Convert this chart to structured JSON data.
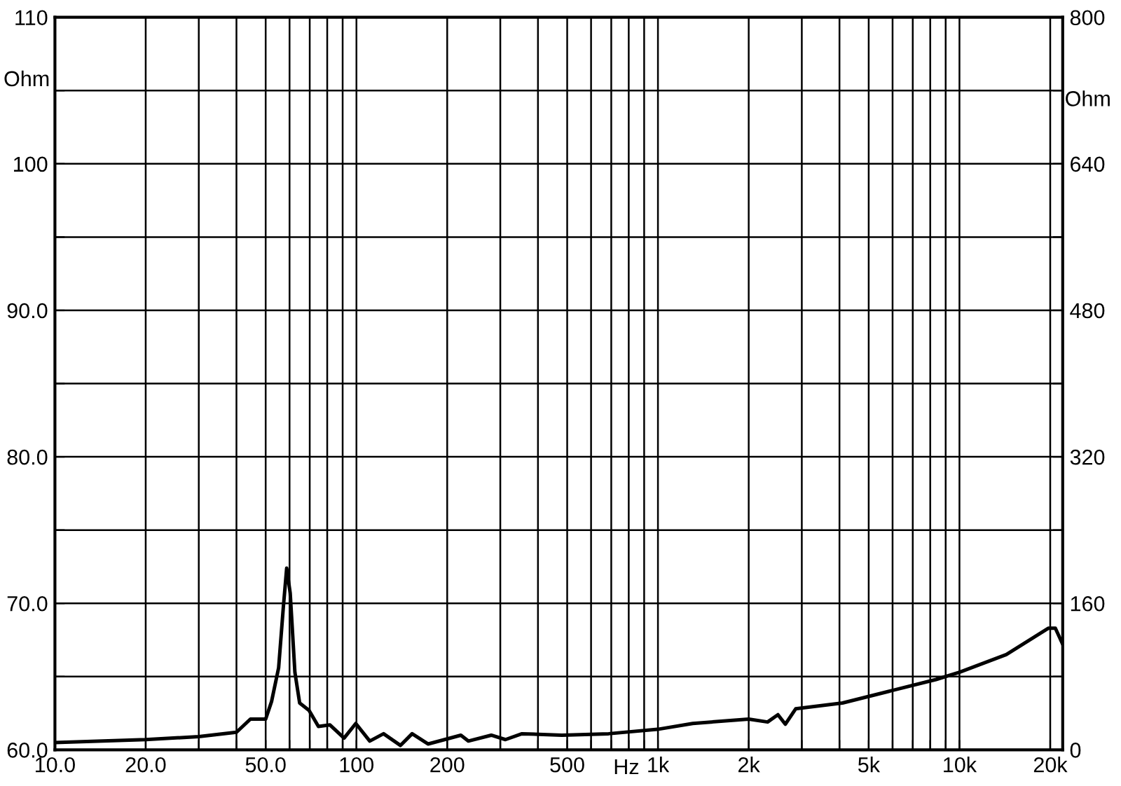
{
  "chart_data": {
    "type": "line",
    "xlabel": "Hz",
    "ylabel": "Ohm",
    "y2label": "Ohm",
    "log": "x",
    "grid": true,
    "marker": "none",
    "line_style": "solid",
    "xlim": [
      10,
      22000
    ],
    "xticks": [
      {
        "value": 10,
        "label": "10.0"
      },
      {
        "value": 20,
        "label": "20.0"
      },
      {
        "value": 30,
        "label": null
      },
      {
        "value": 40,
        "label": null
      },
      {
        "value": 50,
        "label": "50.0"
      },
      {
        "value": 60,
        "label": null
      },
      {
        "value": 70,
        "label": null
      },
      {
        "value": 80,
        "label": null
      },
      {
        "value": 90,
        "label": null
      },
      100,
      200,
      {
        "value": 300,
        "label": null
      },
      {
        "value": 400,
        "label": null
      },
      500,
      {
        "value": 600,
        "label": null
      },
      {
        "value": 700,
        "label": null
      },
      {
        "value": 800,
        "label": null
      },
      {
        "value": 900,
        "label": null
      },
      {
        "value": 1000,
        "label": "1k"
      },
      {
        "value": 2000,
        "label": "2k"
      },
      {
        "value": 3000,
        "label": null
      },
      {
        "value": 4000,
        "label": null
      },
      {
        "value": 5000,
        "label": "5k"
      },
      {
        "value": 6000,
        "label": null
      },
      {
        "value": 7000,
        "label": null
      },
      {
        "value": 8000,
        "label": null
      },
      {
        "value": 9000,
        "label": null
      },
      {
        "value": 10000,
        "label": "10k"
      },
      {
        "value": 20000,
        "label": "20k"
      }
    ],
    "ylim": [
      60,
      110
    ],
    "yticks": [
      {
        "value": 60,
        "label": "60.0"
      },
      {
        "value": 65,
        "label": null
      },
      {
        "value": 70,
        "label": "70.0"
      },
      {
        "value": 75,
        "label": null
      },
      {
        "value": 80,
        "label": "80.0"
      },
      {
        "value": 85,
        "label": null
      },
      {
        "value": 90,
        "label": "90.0"
      },
      {
        "value": 95,
        "label": null
      },
      100,
      {
        "value": 105,
        "label": null
      },
      110
    ],
    "y2lim": [
      0,
      800
    ],
    "y2ticks": [
      0,
      {
        "value": 80,
        "label": null
      },
      160,
      {
        "value": 240,
        "label": null
      },
      320,
      {
        "value": 400,
        "label": null
      },
      480,
      {
        "value": 560,
        "label": null
      },
      640,
      {
        "value": 720,
        "label": null
      },
      800
    ],
    "series": [
      {
        "color": "#000000",
        "x": [
          10,
          20,
          30,
          40,
          44.5,
          50,
          52.3,
          55.2,
          57.2,
          58.7,
          60.3,
          62.5,
          64.8,
          69.6,
          74.8,
          81.7,
          91,
          99.5,
          110.7,
          123,
          140,
          153,
          173,
          196,
          222,
          235,
          280,
          312,
          354,
          480,
          686,
          997,
          1304,
          2000,
          2310,
          2500,
          2645,
          2863,
          4093,
          5850,
          8360,
          10000,
          14300,
          19700,
          20800,
          22000
        ],
        "values": [
          60.5,
          60.7,
          60.9,
          61.2,
          62.1,
          62.1,
          63.3,
          65.6,
          69.7,
          72.4,
          70.7,
          65.3,
          63.2,
          62.7,
          61.6,
          61.7,
          60.8,
          61.8,
          60.6,
          61.1,
          60.3,
          61.1,
          60.4,
          60.7,
          61.0,
          60.6,
          61.0,
          60.7,
          61.1,
          61.0,
          61.1,
          61.4,
          61.8,
          62.1,
          61.9,
          62.4,
          61.75,
          62.8,
          63.2,
          64.0,
          64.8,
          65.3,
          66.5,
          68.3,
          68.3,
          67.2
        ]
      }
    ]
  }
}
